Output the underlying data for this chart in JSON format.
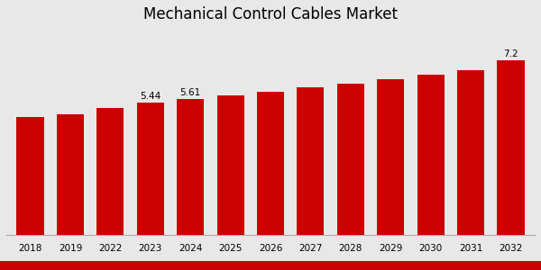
{
  "title": "Mechanical Control Cables Market",
  "categories": [
    "2018",
    "2019",
    "2022",
    "2023",
    "2024",
    "2025",
    "2026",
    "2027",
    "2028",
    "2029",
    "2030",
    "2031",
    "2032"
  ],
  "values": [
    4.85,
    4.98,
    5.25,
    5.44,
    5.61,
    5.75,
    5.92,
    6.08,
    6.25,
    6.42,
    6.6,
    6.8,
    7.2
  ],
  "bar_color": "#cc0000",
  "label_indices": [
    3,
    4,
    12
  ],
  "labels": [
    "5.44",
    "5.61",
    "7.2"
  ],
  "background_color": "#e8e8e8",
  "ylim": [
    0,
    8.5
  ],
  "title_fontsize": 12,
  "label_fontsize": 7.5,
  "axis_label_fontsize": 7.5,
  "red_strip_color": "#cc0000"
}
